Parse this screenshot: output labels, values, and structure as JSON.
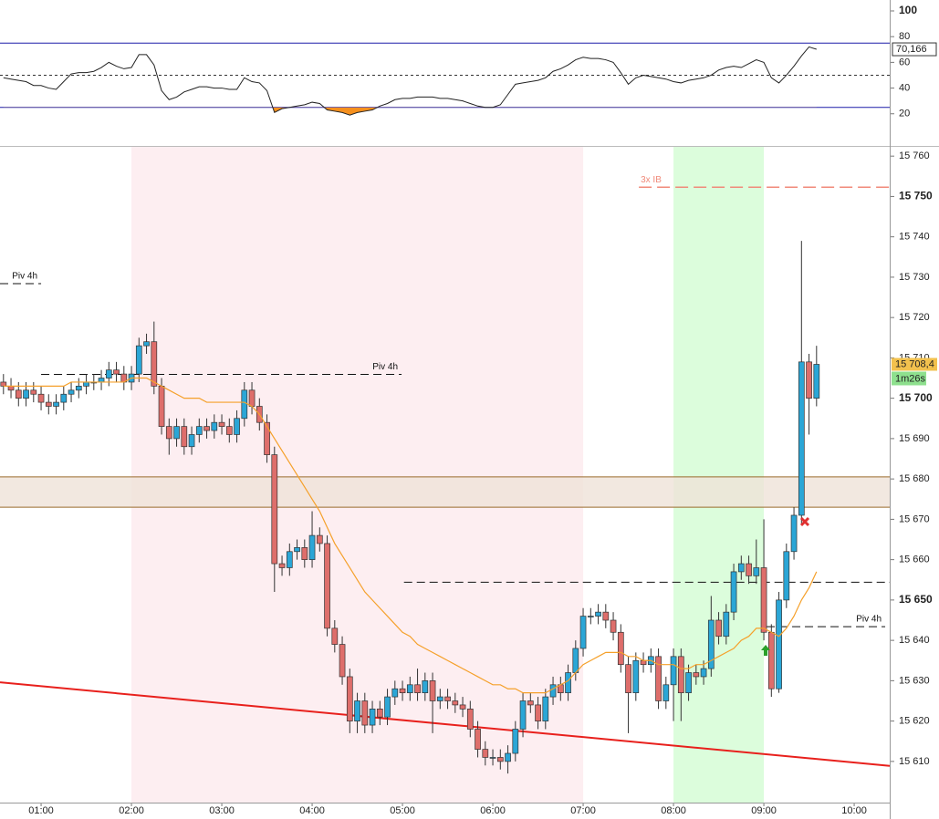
{
  "chart_data": [
    {
      "type": "line",
      "color": "#222222",
      "x": [
        35,
        40,
        45,
        50,
        55,
        60,
        65,
        70,
        75,
        80,
        85,
        90,
        95,
        100,
        105,
        110,
        115,
        120,
        125,
        130,
        135,
        140,
        145,
        150,
        155,
        160,
        165,
        170,
        175,
        180,
        185,
        190,
        195,
        200,
        205,
        210,
        215,
        220,
        225,
        230,
        235,
        240,
        245,
        250,
        255,
        260,
        265,
        270,
        275,
        280,
        285,
        290,
        295,
        300,
        305,
        310,
        315,
        320,
        325,
        330,
        335,
        340,
        345,
        350,
        355,
        360,
        365,
        370,
        375,
        380,
        385,
        390,
        395,
        400,
        405,
        410,
        415,
        420,
        425,
        430,
        435,
        440,
        445,
        450,
        455,
        460,
        465,
        470,
        475,
        480,
        485,
        490,
        495,
        500,
        505,
        510,
        515,
        520,
        525,
        530,
        535,
        540,
        545,
        550,
        555,
        560,
        565,
        570,
        575
      ],
      "values": [
        48,
        47,
        46,
        45,
        42,
        42,
        40,
        39,
        45,
        51,
        52,
        52,
        53,
        56,
        60,
        57,
        55,
        56,
        66,
        66,
        58,
        38,
        31,
        33,
        37,
        39,
        41,
        41,
        40,
        40,
        39,
        39,
        48,
        45,
        44,
        38,
        21,
        24,
        25,
        26,
        27,
        29,
        28,
        23,
        22,
        21,
        19,
        21,
        22,
        23,
        26,
        28,
        31,
        32,
        32,
        33,
        33,
        33,
        32,
        32,
        31,
        30,
        28,
        26,
        25,
        25,
        27,
        35,
        43,
        44,
        45,
        46,
        48,
        53,
        55,
        58,
        62,
        64,
        63,
        63,
        62,
        60,
        52,
        43,
        48,
        50,
        49,
        48,
        47,
        45,
        44,
        46,
        47,
        48,
        50,
        54,
        56,
        57,
        56,
        59,
        62,
        60,
        48,
        44,
        50,
        57,
        65,
        72,
        70.166
      ],
      "last_label": "70,166",
      "fill_below": 25,
      "fill_color": "#f5901e",
      "xlim": [
        32.7,
        623.6
      ],
      "ylim": [
        -5,
        108.5
      ],
      "yticks": [
        {
          "value": 20,
          "label": "20"
        },
        {
          "value": 40,
          "label": "40"
        },
        {
          "value": 60,
          "label": "60"
        },
        {
          "value": 80,
          "label": "80"
        },
        {
          "value": 100,
          "label": "100",
          "bold": true
        }
      ],
      "hlines": [
        {
          "value": 75,
          "color": "#1c1ca8",
          "dash": false
        },
        {
          "value": 50,
          "color": "#333333",
          "dash": true
        },
        {
          "value": 25,
          "color": "#1c1ca8",
          "dash": false
        }
      ]
    },
    {
      "type": "candlestick",
      "up_color": "#2ba6d6",
      "down_color": "#de6e6b",
      "x": [
        35,
        40,
        45,
        50,
        55,
        60,
        65,
        70,
        75,
        80,
        85,
        90,
        95,
        100,
        105,
        110,
        115,
        120,
        125,
        130,
        135,
        140,
        145,
        150,
        155,
        160,
        165,
        170,
        175,
        180,
        185,
        190,
        195,
        200,
        205,
        210,
        215,
        220,
        225,
        230,
        235,
        240,
        245,
        250,
        255,
        260,
        265,
        270,
        275,
        280,
        285,
        290,
        295,
        300,
        305,
        310,
        315,
        320,
        325,
        330,
        335,
        340,
        345,
        350,
        355,
        360,
        365,
        370,
        375,
        380,
        385,
        390,
        395,
        400,
        405,
        410,
        415,
        420,
        425,
        430,
        435,
        440,
        445,
        450,
        455,
        460,
        465,
        470,
        475,
        480,
        485,
        490,
        495,
        500,
        505,
        510,
        515,
        520,
        525,
        530,
        535,
        540,
        545,
        550,
        555,
        560,
        565,
        570,
        575
      ],
      "open": [
        15704,
        15703,
        15702,
        15700,
        15702,
        15701,
        15699,
        15698,
        15699,
        15701,
        15702,
        15703,
        15704,
        15704,
        15705,
        15707,
        15706,
        15704,
        15706,
        15713,
        15714,
        15703,
        15693,
        15690,
        15693,
        15688,
        15691,
        15693,
        15692,
        15694,
        15693,
        15691,
        15695,
        15702,
        15698,
        15694,
        15686,
        15659,
        15658,
        15662,
        15663,
        15660,
        15666,
        15664,
        15643,
        15639,
        15631,
        15620,
        15625,
        15619,
        15623,
        15621,
        15626,
        15628,
        15627,
        15629,
        15627,
        15630,
        15625,
        15626,
        15625,
        15624,
        15623,
        15618,
        15613,
        15611,
        15611,
        15610,
        15612,
        15618,
        15625,
        15624,
        15620,
        15626,
        15629,
        15627,
        15632,
        15638,
        15646,
        15646,
        15647,
        15645,
        15642,
        15634,
        15627,
        15635,
        15634,
        15636,
        15625,
        15629,
        15636,
        15627,
        15632,
        15631,
        15633,
        15645,
        15641,
        15647,
        15657,
        15659,
        15656,
        15658,
        15642,
        15628,
        15650,
        15662,
        15671,
        15709,
        15700
      ],
      "high": [
        15706,
        15705,
        15704,
        15704,
        15704,
        15703,
        15701,
        15701,
        15703,
        15704,
        15705,
        15706,
        15706,
        15707,
        15709,
        15709,
        15708,
        15708,
        15715,
        15716,
        15719,
        15705,
        15695,
        15695,
        15695,
        15693,
        15695,
        15695,
        15696,
        15696,
        15695,
        15697,
        15704,
        15704,
        15700,
        15696,
        15688,
        15661,
        15664,
        15665,
        15665,
        15672,
        15668,
        15666,
        15645,
        15641,
        15633,
        15627,
        15627,
        15625,
        15625,
        15628,
        15630,
        15630,
        15631,
        15633,
        15632,
        15632,
        15628,
        15628,
        15627,
        15626,
        15625,
        15620,
        15615,
        15613,
        15613,
        15614,
        15620,
        15627,
        15627,
        15626,
        15628,
        15631,
        15631,
        15634,
        15640,
        15648,
        15648,
        15649,
        15649,
        15647,
        15644,
        15636,
        15637,
        15637,
        15638,
        15638,
        15631,
        15638,
        15638,
        15634,
        15634,
        15635,
        15651,
        15647,
        15649,
        15659,
        15661,
        15661,
        15665,
        15670,
        15644,
        15652,
        15664,
        15673,
        15739,
        15711,
        15713
      ],
      "low": [
        15701,
        15700,
        15698,
        15698,
        15699,
        15697,
        15696,
        15696,
        15697,
        15699,
        15700,
        15701,
        15702,
        15702,
        15703,
        15704,
        15702,
        15702,
        15704,
        15711,
        15701,
        15691,
        15686,
        15688,
        15686,
        15686,
        15689,
        15690,
        15690,
        15691,
        15689,
        15689,
        15693,
        15696,
        15692,
        15684,
        15652,
        15656,
        15656,
        15660,
        15658,
        15658,
        15662,
        15641,
        15637,
        15629,
        15617,
        15617,
        15617,
        15617,
        15619,
        15619,
        15624,
        15625,
        15625,
        15625,
        15625,
        15617,
        15623,
        15623,
        15622,
        15621,
        15616,
        15611,
        15609,
        15609,
        15608,
        15607,
        15610,
        15616,
        15622,
        15618,
        15618,
        15624,
        15625,
        15625,
        15630,
        15636,
        15644,
        15644,
        15643,
        15640,
        15632,
        15617,
        15625,
        15632,
        15632,
        15623,
        15623,
        15620,
        15620,
        15625,
        15629,
        15629,
        15631,
        15639,
        15639,
        15645,
        15655,
        15654,
        15654,
        15640,
        15626,
        15627,
        15648,
        15660,
        15669,
        15691,
        15698
      ],
      "close": [
        15703,
        15702,
        15700,
        15702,
        15701,
        15699,
        15698,
        15699,
        15701,
        15702,
        15703,
        15704,
        15704,
        15705,
        15707,
        15706,
        15704,
        15706,
        15713,
        15714,
        15703,
        15693,
        15690,
        15693,
        15688,
        15691,
        15693,
        15692,
        15694,
        15693,
        15691,
        15695,
        15702,
        15698,
        15694,
        15686,
        15659,
        15658,
        15662,
        15663,
        15660,
        15666,
        15664,
        15643,
        15639,
        15631,
        15620,
        15625,
        15619,
        15623,
        15621,
        15626,
        15628,
        15627,
        15629,
        15627,
        15630,
        15625,
        15626,
        15625,
        15624,
        15623,
        15618,
        15613,
        15611,
        15611,
        15610,
        15612,
        15618,
        15625,
        15624,
        15620,
        15626,
        15629,
        15627,
        15632,
        15638,
        15646,
        15646,
        15647,
        15645,
        15642,
        15634,
        15627,
        15635,
        15634,
        15636,
        15625,
        15629,
        15636,
        15627,
        15632,
        15631,
        15633,
        15645,
        15641,
        15647,
        15657,
        15659,
        15656,
        15658,
        15642,
        15628,
        15650,
        15662,
        15671,
        15709,
        15700,
        15708.4
      ],
      "ma": {
        "color": "#f5a02a",
        "values": [
          15703,
          15703,
          15703,
          15703,
          15703,
          15703,
          15703,
          15703,
          15703,
          15704,
          15704,
          15704,
          15704,
          15704,
          15704,
          15704,
          15704,
          15705,
          15705,
          15705,
          15704,
          15703,
          15702,
          15701,
          15700,
          15700,
          15700,
          15699,
          15699,
          15699,
          15699,
          15699,
          15699,
          15698,
          15696,
          15693,
          15690,
          15687,
          15684,
          15681,
          15678,
          15675,
          15672,
          15668,
          15664,
          15661,
          15658,
          15655,
          15652,
          15650,
          15648,
          15646,
          15644,
          15642,
          15641,
          15639,
          15638,
          15637,
          15636,
          15635,
          15634,
          15633,
          15632,
          15631,
          15630,
          15629,
          15629,
          15628,
          15628,
          15627,
          15627,
          15627,
          15627,
          15628,
          15629,
          15630,
          15632,
          15634,
          15635,
          15636,
          15637,
          15637,
          15637,
          15636,
          15636,
          15635,
          15635,
          15634,
          15634,
          15634,
          15633,
          15633,
          15634,
          15634,
          15635,
          15636,
          15637,
          15638,
          15640,
          15641,
          15643,
          15643,
          15642,
          15641,
          15643,
          15646,
          15650,
          15653,
          15657
        ]
      },
      "xlim": [
        32.7,
        623.6
      ],
      "ylim": [
        15599.8,
        15762.3
      ],
      "yticks": [
        {
          "value": 15610,
          "label": "15 610"
        },
        {
          "value": 15620,
          "label": "15 620"
        },
        {
          "value": 15630,
          "label": "15 630"
        },
        {
          "value": 15640,
          "label": "15 640"
        },
        {
          "value": 15650,
          "label": "15 650",
          "bold": true
        },
        {
          "value": 15660,
          "label": "15 660"
        },
        {
          "value": 15670,
          "label": "15 670"
        },
        {
          "value": 15680,
          "label": "15 680"
        },
        {
          "value": 15690,
          "label": "15 690"
        },
        {
          "value": 15700,
          "label": "15 700",
          "bold": true
        },
        {
          "value": 15710,
          "label": "15 710"
        },
        {
          "value": 15720,
          "label": "15 720"
        },
        {
          "value": 15730,
          "label": "15 730"
        },
        {
          "value": 15740,
          "label": "15 740"
        },
        {
          "value": 15750,
          "label": "15 750",
          "bold": true
        },
        {
          "value": 15760,
          "label": "15 760"
        }
      ],
      "xticks": [
        {
          "value": 60,
          "label": "01:00"
        },
        {
          "value": 120,
          "label": "02:00"
        },
        {
          "value": 180,
          "label": "03:00"
        },
        {
          "value": 240,
          "label": "04:00"
        },
        {
          "value": 300,
          "label": "05:00"
        },
        {
          "value": 360,
          "label": "06:00"
        },
        {
          "value": 420,
          "label": "07:00"
        },
        {
          "value": 480,
          "label": "08:00"
        },
        {
          "value": 540,
          "label": "09:00"
        },
        {
          "value": 600,
          "label": "10:00"
        }
      ],
      "sessions": [
        {
          "x": [
            120,
            420
          ],
          "color": "#fdeef1"
        },
        {
          "x": [
            480,
            540
          ],
          "color": "#dcfddc"
        }
      ],
      "zone": {
        "values": [
          15673,
          15680.5
        ],
        "color": "#efe2d8",
        "edge": "#9a6b2c"
      },
      "trendline": {
        "x": [
          32.7,
          623.6
        ],
        "values": [
          15629.6,
          15608.9
        ],
        "color": "#e8201c"
      },
      "levels": [
        {
          "name": "Piv 4h",
          "value": 15728.4,
          "x": [
            32.7,
            60
          ],
          "color": "#111111"
        },
        {
          "name": "Piv 4h",
          "value": 15705.9,
          "x": [
            60,
            299.4
          ],
          "color": "#111111"
        },
        {
          "value": 15654.4,
          "x": [
            301,
            623.6
          ],
          "color": "#111111"
        },
        {
          "name": "Piv 4h",
          "value": 15643.4,
          "x": [
            541.8,
            620.6
          ],
          "color": "#111111"
        },
        {
          "name": "3x IB",
          "value": 15752.3,
          "x": [
            457,
            623.6
          ],
          "color": "#f08a7a",
          "label_at": "start"
        }
      ],
      "last_label": "15 708,4",
      "countdown": "1m26s"
    }
  ]
}
